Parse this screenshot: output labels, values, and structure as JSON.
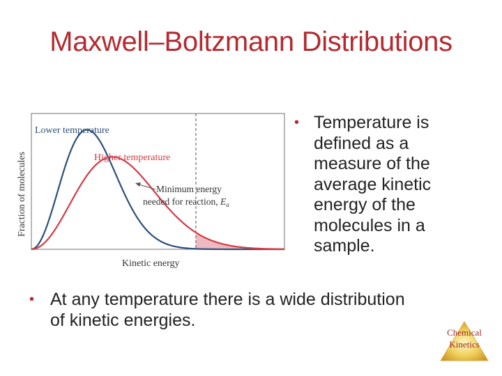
{
  "slide": {
    "title": "Maxwell–Boltzmann Distributions",
    "bullets_right": [
      "Temperature is defined as a measure of the average kinetic energy of the molecules in a sample."
    ],
    "bullets_bottom": [
      "At any temperature there is a wide distribution of kinetic energies."
    ],
    "badge": {
      "line1": "Chemical",
      "line2": "Kinetics"
    }
  },
  "chart_data": {
    "type": "line",
    "title": "",
    "xlabel": "Kinetic energy",
    "ylabel": "Fraction of molecules",
    "series": [
      {
        "name": "Lower temperature",
        "color": "#2c4f78",
        "peak_x": 0.22,
        "peak_y": 0.88
      },
      {
        "name": "Higher temperature",
        "color": "#d33a46",
        "peak_x": 0.32,
        "peak_y": 0.68
      }
    ],
    "threshold": {
      "x": 0.65,
      "label_line1": "Minimum energy",
      "label_line2": "needed for reaction,",
      "symbol": "E",
      "subscript": "a"
    },
    "shaded_region_color": "#e6a3ab",
    "xlim": [
      0,
      1
    ],
    "ylim": [
      0,
      1
    ]
  },
  "colors": {
    "title": "#b5292f",
    "bullet": "#b5292f",
    "text": "#222222"
  },
  "icons": {
    "bullet": "•"
  }
}
